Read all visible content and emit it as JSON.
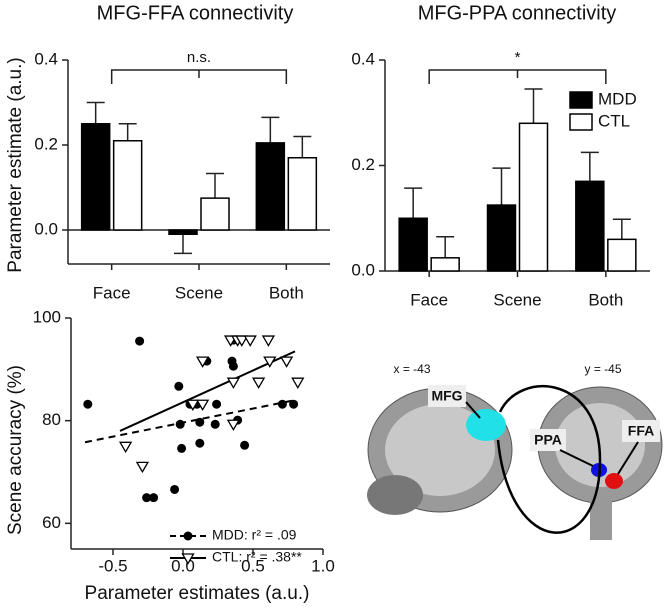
{
  "chart_data": [
    {
      "type": "bar",
      "title": "MFG-FFA connectivity",
      "y_label": "Parameter estimate (a.u.)",
      "categories": [
        "Face",
        "Scene",
        "Both"
      ],
      "series": [
        {
          "name": "MDD",
          "color": "#000000",
          "values": [
            0.25,
            -0.01,
            0.205
          ],
          "errors": [
            0.05,
            0.045,
            0.06
          ]
        },
        {
          "name": "CTL",
          "color": "#ffffff",
          "values": [
            0.21,
            0.075,
            0.17
          ],
          "errors": [
            0.04,
            0.058,
            0.05
          ]
        }
      ],
      "ylim": [
        -0.08,
        0.4
      ],
      "yticks": [
        {
          "value": 0,
          "label": "0.0"
        },
        {
          "value": 0.2,
          "label": "0.2"
        },
        {
          "value": 0.4,
          "label": "0.4"
        }
      ],
      "annotation": "n.s."
    },
    {
      "type": "bar",
      "title": "MFG-PPA connectivity",
      "categories": [
        "Face",
        "Scene",
        "Both"
      ],
      "series": [
        {
          "name": "MDD",
          "color": "#000000",
          "values": [
            0.1,
            0.125,
            0.17
          ],
          "errors": [
            0.057,
            0.07,
            0.055
          ]
        },
        {
          "name": "CTL",
          "color": "#ffffff",
          "values": [
            0.025,
            0.28,
            0.06
          ],
          "errors": [
            0.04,
            0.065,
            0.038
          ]
        }
      ],
      "ylim": [
        0,
        0.4
      ],
      "yticks": [
        {
          "value": 0,
          "label": "0.0"
        },
        {
          "value": 0.2,
          "label": "0.2"
        },
        {
          "value": 0.4,
          "label": "0.4"
        }
      ],
      "annotation": "*",
      "legend": "upper right"
    },
    {
      "type": "scatter",
      "x_label": "Parameter estimates (a.u.)",
      "y_label": "Scene accuracy (%)",
      "xlim": [
        -0.8,
        1.0
      ],
      "ylim": [
        55,
        100
      ],
      "xticks": [
        {
          "value": -0.5,
          "label": "-0.5"
        },
        {
          "value": 0,
          "label": "0.0"
        },
        {
          "value": 0.5,
          "label": "0.5"
        },
        {
          "value": 1,
          "label": "1.0"
        }
      ],
      "yticks": [
        60,
        80,
        100
      ],
      "series": [
        {
          "name": "MDD: r² = .09",
          "marker": "circle",
          "color": "#000000",
          "x": [
            -0.68,
            -0.31,
            -0.26,
            -0.21,
            -0.06,
            -0.03,
            -0.01,
            -0.02,
            0.05,
            0.07,
            0.1,
            0.12,
            0.12,
            0.17,
            0.23,
            0.24,
            0.36,
            0.36,
            0.35,
            0.39,
            0.44,
            0.71,
            0.79
          ],
          "values": [
            83.2,
            95.5,
            65,
            65,
            66.6,
            86.7,
            74.6,
            79.3,
            83.2,
            83.2,
            83.2,
            79.7,
            75.6,
            91.6,
            79.3,
            83.2,
            90.6,
            95.7,
            91.6,
            80.1,
            75.2,
            83.2,
            83.2
          ],
          "fit": {
            "x": [
              -0.7,
              0.8
            ],
            "values": [
              75.8,
              84
            ]
          }
        },
        {
          "name": "CTL: r² = .38**",
          "marker": "triangle",
          "color": "#000000",
          "x": [
            -0.41,
            -0.29,
            0.14,
            0.07,
            0.14,
            0.34,
            0.39,
            0.42,
            0.48,
            0.61,
            0.62,
            0.74,
            0.36,
            0.54,
            0.82,
            0.36
          ],
          "values": [
            75,
            71.1,
            91.6,
            83.2,
            83.2,
            95.7,
            95.7,
            95.7,
            95.7,
            95.7,
            91.6,
            91.6,
            87.5,
            87.5,
            87.5,
            79.3
          ],
          "fit": {
            "x": [
              -0.45,
              0.8
            ],
            "values": [
              78,
              93.5
            ]
          }
        }
      ]
    }
  ],
  "brain_figure": {
    "sagittal_label": "x = -43",
    "coronal_label": "y = -45",
    "regions": [
      "MFG",
      "PPA",
      "FFA"
    ]
  }
}
